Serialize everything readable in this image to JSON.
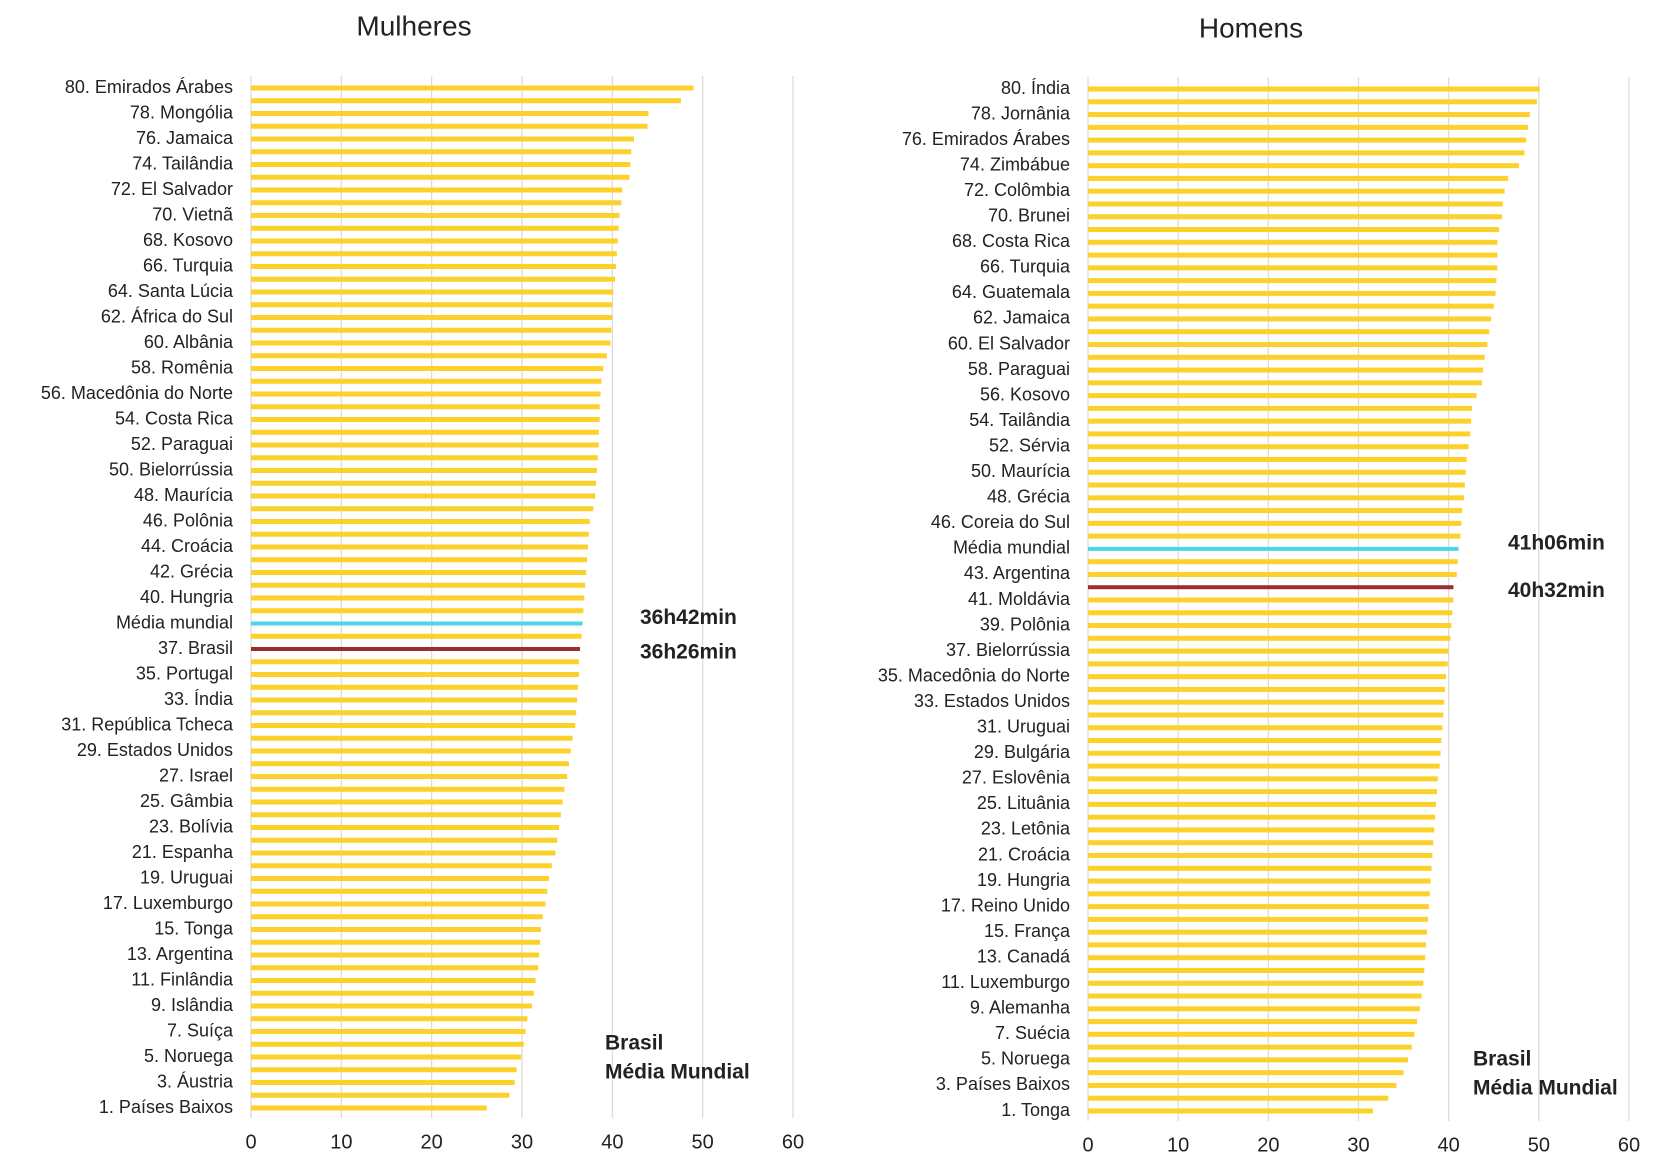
{
  "chart_data": [
    {
      "type": "bar",
      "orientation": "horizontal",
      "title": "Mulheres",
      "categories": [
        "80. Emirados Árabes",
        null,
        "78. Mongólia",
        null,
        "76. Jamaica",
        null,
        "74. Tailândia",
        null,
        "72. El Salvador",
        null,
        "70. Vietnã",
        null,
        "68. Kosovo",
        null,
        "66. Turquia",
        null,
        "64. Santa Lúcia",
        null,
        "62. África do Sul",
        null,
        "60. Albânia",
        null,
        "58. Romênia",
        null,
        "56. Macedônia do Norte",
        null,
        "54. Costa Rica",
        null,
        "52. Paraguai",
        null,
        "50. Bielorrússia",
        null,
        "48. Maurícia",
        null,
        "46. Polônia",
        null,
        "44. Croácia",
        null,
        "42. Grécia",
        null,
        "40. Hungria",
        null,
        "Média mundial",
        null,
        "37. Brasil",
        null,
        "35. Portugal",
        null,
        "33. Índia",
        null,
        "31. República Tcheca",
        null,
        "29. Estados Unidos",
        null,
        "27. Israel",
        null,
        "25. Gâmbia",
        null,
        "23. Bolívia",
        null,
        "21. Espanha",
        null,
        "19. Uruguai",
        null,
        "17. Luxemburgo",
        null,
        "15. Tonga",
        null,
        "13. Argentina",
        null,
        "11. Finlândia",
        null,
        "9. Islândia",
        null,
        "7. Suíça",
        null,
        "5. Noruega",
        null,
        "3. Áustria",
        null,
        "1. Países Baixos"
      ],
      "values": [
        49.0,
        47.6,
        44.0,
        43.9,
        42.4,
        42.1,
        42.0,
        41.9,
        41.1,
        41.0,
        40.8,
        40.7,
        40.6,
        40.5,
        40.4,
        40.3,
        40.1,
        40.0,
        40.0,
        39.9,
        39.8,
        39.4,
        39.0,
        38.8,
        38.7,
        38.6,
        38.6,
        38.5,
        38.5,
        38.4,
        38.3,
        38.2,
        38.1,
        37.9,
        37.5,
        37.4,
        37.3,
        37.2,
        37.1,
        37.0,
        36.9,
        36.8,
        36.7,
        36.6,
        36.43,
        36.3,
        36.3,
        36.2,
        36.1,
        36.0,
        35.9,
        35.6,
        35.4,
        35.2,
        35.0,
        34.7,
        34.5,
        34.3,
        34.1,
        33.9,
        33.7,
        33.3,
        33.0,
        32.8,
        32.6,
        32.3,
        32.1,
        32.0,
        31.9,
        31.8,
        31.5,
        31.3,
        31.1,
        30.6,
        30.4,
        30.2,
        29.9,
        29.4,
        29.2,
        28.6,
        26.1
      ],
      "colors": [
        "#fcd12a",
        "#fcd12a",
        "#fcd12a",
        "#fcd12a",
        "#fcd12a",
        "#fcd12a",
        "#fcd12a",
        "#fcd12a",
        "#fcd12a",
        "#fcd12a",
        "#fcd12a",
        "#fcd12a",
        "#fcd12a",
        "#fcd12a",
        "#fcd12a",
        "#fcd12a",
        "#fcd12a",
        "#fcd12a",
        "#fcd12a",
        "#fcd12a",
        "#fcd12a",
        "#fcd12a",
        "#fcd12a",
        "#fcd12a",
        "#fcd12a",
        "#fcd12a",
        "#fcd12a",
        "#fcd12a",
        "#fcd12a",
        "#fcd12a",
        "#fcd12a",
        "#fcd12a",
        "#fcd12a",
        "#fcd12a",
        "#fcd12a",
        "#fcd12a",
        "#fcd12a",
        "#fcd12a",
        "#fcd12a",
        "#fcd12a",
        "#fcd12a",
        "#fcd12a",
        "#4dd4e8",
        "#fcd12a",
        "#9b2d30",
        "#fcd12a",
        "#fcd12a",
        "#fcd12a",
        "#fcd12a",
        "#fcd12a",
        "#fcd12a",
        "#fcd12a",
        "#fcd12a",
        "#fcd12a",
        "#fcd12a",
        "#fcd12a",
        "#fcd12a",
        "#fcd12a",
        "#fcd12a",
        "#fcd12a",
        "#fcd12a",
        "#fcd12a",
        "#fcd12a",
        "#fcd12a",
        "#fcd12a",
        "#fcd12a",
        "#fcd12a",
        "#fcd12a",
        "#fcd12a",
        "#fcd12a",
        "#fcd12a",
        "#fcd12a",
        "#fcd12a",
        "#fcd12a",
        "#fcd12a",
        "#fcd12a",
        "#fcd12a",
        "#fcd12a",
        "#fcd12a",
        "#fcd12a",
        "#fcd12a"
      ],
      "annotations": [
        {
          "text": "36h42min",
          "color": "#4dd4e8"
        },
        {
          "text": "36h26min",
          "color": "#9b2d30"
        }
      ],
      "legend": [
        {
          "name": "Brasil",
          "color": "#9b2d30"
        },
        {
          "name": "Média Mundial",
          "color": "#4dd4e8"
        }
      ],
      "legend_position": "lower right",
      "xlim": [
        0,
        60
      ],
      "xticks": [
        0,
        10,
        20,
        30,
        40,
        50,
        60
      ],
      "grid": true
    },
    {
      "type": "bar",
      "orientation": "horizontal",
      "title": "Homens",
      "categories": [
        "80. Índia",
        null,
        "78. Jornânia",
        null,
        "76. Emirados Árabes",
        null,
        "74. Zimbábue",
        null,
        "72. Colômbia",
        null,
        "70. Brunei",
        null,
        "68. Costa Rica",
        null,
        "66. Turquia",
        null,
        "64. Guatemala",
        null,
        "62. Jamaica",
        null,
        "60. El Salvador",
        null,
        "58. Paraguai",
        null,
        "56. Kosovo",
        null,
        "54. Tailândia",
        null,
        "52. Sérvia",
        null,
        "50. Maurícia",
        null,
        "48. Grécia",
        null,
        "46. Coreia do Sul",
        null,
        "Média mundial",
        null,
        "43. Argentina",
        null,
        "41. Moldávia",
        null,
        "39. Polônia",
        null,
        "37. Bielorrússia",
        null,
        "35. Macedônia do Norte",
        null,
        "33. Estados Unidos",
        null,
        "31. Uruguai",
        null,
        "29. Bulgária",
        null,
        "27. Eslovênia",
        null,
        "25. Lituânia",
        null,
        "23. Letônia",
        null,
        "21. Croácia",
        null,
        "19. Hungria",
        null,
        "17. Reino Unido",
        null,
        "15. França",
        null,
        "13. Canadá",
        null,
        "11. Luxemburgo",
        null,
        "9. Alemanha",
        null,
        "7. Suécia",
        null,
        "5. Noruega",
        null,
        "3. Países Baixos",
        null,
        "1. Tonga"
      ],
      "values": [
        50.1,
        49.8,
        49.0,
        48.8,
        48.6,
        48.4,
        47.8,
        46.6,
        46.2,
        46.0,
        45.9,
        45.6,
        45.4,
        45.4,
        45.4,
        45.3,
        45.2,
        45.0,
        44.7,
        44.5,
        44.3,
        44.0,
        43.8,
        43.7,
        43.1,
        42.6,
        42.5,
        42.4,
        42.2,
        42.0,
        41.9,
        41.8,
        41.7,
        41.5,
        41.4,
        41.3,
        41.1,
        41.0,
        40.9,
        40.53,
        40.5,
        40.4,
        40.3,
        40.2,
        40.0,
        39.9,
        39.7,
        39.6,
        39.5,
        39.4,
        39.3,
        39.2,
        39.1,
        39.0,
        38.8,
        38.7,
        38.6,
        38.5,
        38.4,
        38.3,
        38.2,
        38.1,
        38.0,
        37.9,
        37.8,
        37.7,
        37.6,
        37.5,
        37.4,
        37.3,
        37.2,
        37.0,
        36.8,
        36.5,
        36.2,
        35.9,
        35.5,
        35.0,
        34.2,
        33.3,
        31.6
      ],
      "colors": [
        "#fcd12a",
        "#fcd12a",
        "#fcd12a",
        "#fcd12a",
        "#fcd12a",
        "#fcd12a",
        "#fcd12a",
        "#fcd12a",
        "#fcd12a",
        "#fcd12a",
        "#fcd12a",
        "#fcd12a",
        "#fcd12a",
        "#fcd12a",
        "#fcd12a",
        "#fcd12a",
        "#fcd12a",
        "#fcd12a",
        "#fcd12a",
        "#fcd12a",
        "#fcd12a",
        "#fcd12a",
        "#fcd12a",
        "#fcd12a",
        "#fcd12a",
        "#fcd12a",
        "#fcd12a",
        "#fcd12a",
        "#fcd12a",
        "#fcd12a",
        "#fcd12a",
        "#fcd12a",
        "#fcd12a",
        "#fcd12a",
        "#fcd12a",
        "#fcd12a",
        "#4dd4e8",
        "#fcd12a",
        "#fcd12a",
        "#9b2d30",
        "#fcd12a",
        "#fcd12a",
        "#fcd12a",
        "#fcd12a",
        "#fcd12a",
        "#fcd12a",
        "#fcd12a",
        "#fcd12a",
        "#fcd12a",
        "#fcd12a",
        "#fcd12a",
        "#fcd12a",
        "#fcd12a",
        "#fcd12a",
        "#fcd12a",
        "#fcd12a",
        "#fcd12a",
        "#fcd12a",
        "#fcd12a",
        "#fcd12a",
        "#fcd12a",
        "#fcd12a",
        "#fcd12a",
        "#fcd12a",
        "#fcd12a",
        "#fcd12a",
        "#fcd12a",
        "#fcd12a",
        "#fcd12a",
        "#fcd12a",
        "#fcd12a",
        "#fcd12a",
        "#fcd12a",
        "#fcd12a",
        "#fcd12a",
        "#fcd12a",
        "#fcd12a",
        "#fcd12a",
        "#fcd12a",
        "#fcd12a",
        "#fcd12a"
      ],
      "annotations": [
        {
          "text": "41h06min",
          "color": "#4dd4e8"
        },
        {
          "text": "40h32min",
          "color": "#9b2d30"
        }
      ],
      "legend": [
        {
          "name": "Brasil",
          "color": "#9b2d30"
        },
        {
          "name": "Média Mundial",
          "color": "#4dd4e8"
        }
      ],
      "legend_position": "lower right",
      "xlim": [
        0,
        60
      ],
      "xticks": [
        0,
        10,
        20,
        30,
        40,
        50,
        60
      ],
      "grid": true
    }
  ]
}
